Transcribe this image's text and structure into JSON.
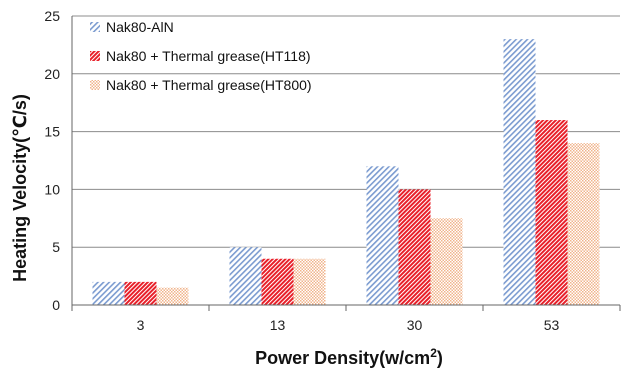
{
  "chart_data": {
    "type": "bar",
    "title": "",
    "xlabel": "Power Density(w/cm",
    "xlabel_sup": "2",
    "xlabel_close": ")",
    "ylabel": "Heating Velocity(℃/s)",
    "categories": [
      "3",
      "13",
      "30",
      "53"
    ],
    "ylim": [
      0,
      25
    ],
    "yticks": [
      0,
      5,
      10,
      15,
      20,
      25
    ],
    "grid": true,
    "legend_position": "top-left",
    "series": [
      {
        "name": "Nak80-AlN",
        "values": [
          2,
          5,
          12,
          23
        ],
        "color": "#7b9bd0",
        "pattern": "diagonal-lines"
      },
      {
        "name": "Nak80 + Thermal grease(HT118)",
        "values": [
          2,
          4,
          10,
          16
        ],
        "color": "#e8202a",
        "pattern": "dense-diagonal"
      },
      {
        "name": "Nak80 + Thermal grease(HT800)",
        "values": [
          1.5,
          4,
          7.5,
          14
        ],
        "color": "#f0b48c",
        "pattern": "dots"
      }
    ]
  }
}
